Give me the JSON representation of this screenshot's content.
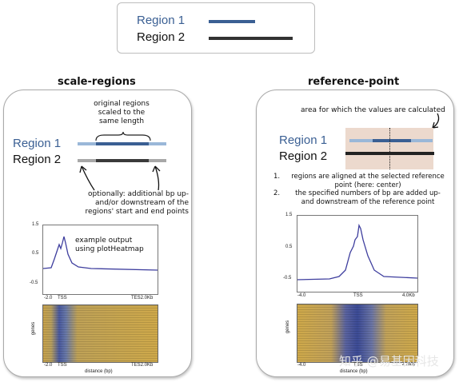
{
  "legend": {
    "items": [
      {
        "label": "Region 1",
        "color": "#3a5f93"
      },
      {
        "label": "Region 2",
        "color": "#333333"
      }
    ]
  },
  "colors": {
    "region1_dark": "#3a5f93",
    "region1_light": "#9ab7d8",
    "region2_dark": "#3a3a3a",
    "region2_light": "#a8a8a8",
    "profile_line": "#3e3e9e",
    "shade": "#ecd9cd"
  },
  "left_panel": {
    "title": "scale-regions",
    "brace_note": "original regions scaled to the same length",
    "region1_label": "Region 1",
    "region2_label": "Region 2",
    "flank_note": "optionally: additional bp up- and/or downstream of the regions' start and end points",
    "plot_note": "example output using plotHeatmap",
    "profile_yticks": [
      "1.5",
      "0.5",
      "-0.5"
    ],
    "profile_xticks": [
      "-2.0",
      "TSS",
      "TES2.0Kb"
    ],
    "heatmap_xticks": [
      "-2.0",
      "TSS",
      "TES2.0Kb"
    ],
    "heatmap_ylabel": "genes",
    "heatmap_xlabel": "distance (bp)"
  },
  "right_panel": {
    "title": "reference-point",
    "area_note": "area for which the values are calculated",
    "region1_label": "Region 1",
    "region2_label": "Region 2",
    "steps": [
      {
        "num": "1.",
        "text": "regions are aligned at the selected reference point (here: center)"
      },
      {
        "num": "2.",
        "text": "the specified numbers of bp are added up- and downstream of the reference point"
      }
    ],
    "profile_yticks": [
      "1.5",
      "0.5",
      "-0.5"
    ],
    "profile_xticks": [
      "-4.0",
      "TSS",
      "4.0Kb"
    ],
    "heatmap_xticks": [
      "-4.0",
      "TSS",
      "4.0Kb"
    ],
    "heatmap_ylabel": "genes",
    "heatmap_xlabel": "distance (bp)"
  },
  "watermark": "知乎 @易基因科技"
}
